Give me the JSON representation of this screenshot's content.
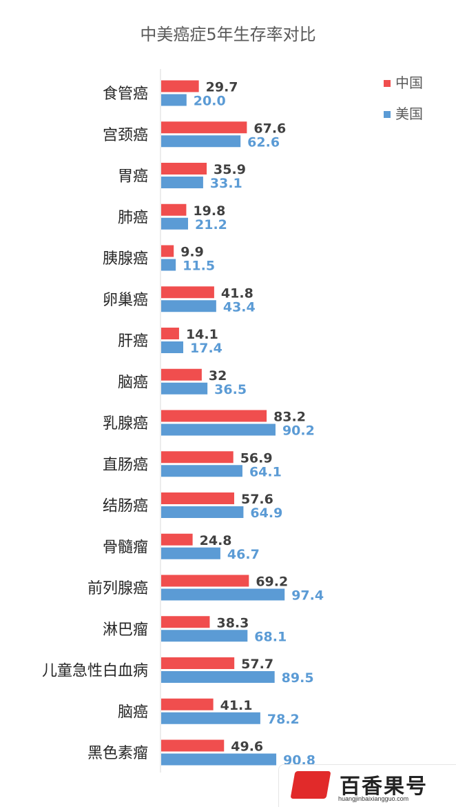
{
  "chart_data": {
    "type": "bar",
    "orientation": "horizontal",
    "title": "中美癌症5年生存率对比",
    "categories": [
      "食管癌",
      "宫颈癌",
      "胃癌",
      "肺癌",
      "胰腺癌",
      "卵巢癌",
      "肝癌",
      "脑癌",
      "乳腺癌",
      "直肠癌",
      "结肠癌",
      "骨髓瘤",
      "前列腺癌",
      "淋巴瘤",
      "儿童急性白血病",
      "脑癌",
      "黑色素瘤"
    ],
    "series": [
      {
        "name": "中国",
        "color": "#f04e4e",
        "label_color": "#404040",
        "values": [
          29.7,
          67.6,
          35.9,
          19.8,
          9.9,
          41.8,
          14.1,
          32,
          83.2,
          56.9,
          57.6,
          24.8,
          69.2,
          38.3,
          57.7,
          41.1,
          49.6
        ],
        "labels": [
          "29.7",
          "67.6",
          "35.9",
          "19.8",
          "9.9",
          "41.8",
          "14.1",
          "32",
          "83.2",
          "56.9",
          "57.6",
          "24.8",
          "69.2",
          "38.3",
          "57.7",
          "41.1",
          "49.6"
        ]
      },
      {
        "name": "美国",
        "color": "#5b9bd5",
        "label_color": "#5b9bd5",
        "values": [
          20.0,
          62.6,
          33.1,
          21.2,
          11.5,
          43.4,
          17.4,
          36.5,
          90.2,
          64.1,
          64.9,
          46.7,
          97.4,
          68.1,
          89.5,
          78.2,
          90.8
        ],
        "labels": [
          "20.0",
          "62.6",
          "33.1",
          "21.2",
          "11.5",
          "43.4",
          "17.4",
          "36.5",
          "90.2",
          "64.1",
          "64.9",
          "46.7",
          "97.4",
          "68.1",
          "89.5",
          "78.2",
          "90.8"
        ]
      }
    ],
    "xlim": [
      0,
      100
    ],
    "legend_position": "top-right",
    "grid": false
  },
  "watermark": {
    "name": "百香果号",
    "url": "huangjinbaixiangguo.com"
  }
}
